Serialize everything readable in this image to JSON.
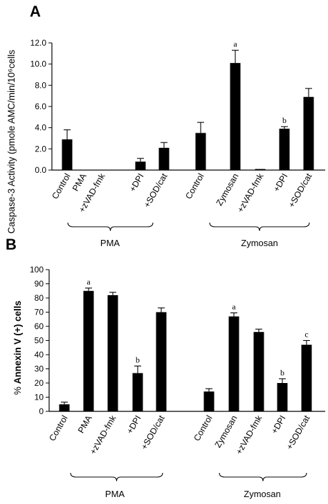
{
  "chart_data": [
    {
      "type": "bar",
      "panel": "A",
      "ylabel": "Caspase-3 Activity (pmole AMC/min/10⁶cells",
      "xlabel": "",
      "ylim": [
        0,
        12
      ],
      "yticks": [
        "0.0",
        "2.0",
        "4.0",
        "6.0",
        "8.0",
        "10.0",
        "12.0"
      ],
      "grid": false,
      "groups": [
        {
          "name": "PMA",
          "categories": [
            "Control",
            "PMA",
            "+zVAD-fmk",
            "+DPI",
            "+SOD/cat"
          ],
          "values": [
            2.9,
            0.0,
            0.0,
            0.8,
            2.1
          ],
          "errors": [
            0.9,
            0.0,
            0.0,
            0.3,
            0.5
          ],
          "annotations": [
            "",
            "",
            "",
            "",
            ""
          ]
        },
        {
          "name": "Zymosan",
          "categories": [
            "Control",
            "Zymosan",
            "+zVAD-fmk",
            "+DPI",
            "+SOD/cat"
          ],
          "values": [
            3.5,
            10.1,
            0.1,
            3.9,
            6.9
          ],
          "errors": [
            1.0,
            1.2,
            0.0,
            0.2,
            0.8
          ],
          "annotations": [
            "",
            "a",
            "",
            "b",
            ""
          ]
        }
      ]
    },
    {
      "type": "bar",
      "panel": "B",
      "ylabel_prefix": "% ",
      "ylabel_bold": "Annexin V (+) cells",
      "xlabel": "",
      "ylim": [
        0,
        100
      ],
      "yticks": [
        "0",
        "10",
        "20",
        "30",
        "40",
        "50",
        "60",
        "70",
        "80",
        "90",
        "100"
      ],
      "grid": false,
      "groups": [
        {
          "name": "PMA",
          "categories": [
            "Control",
            "PMA",
            "+zVAD-fmk",
            "+DPI",
            "+SOD/cat"
          ],
          "values": [
            5,
            85,
            82,
            27,
            70
          ],
          "errors": [
            1.5,
            2,
            2,
            5,
            3
          ],
          "annotations": [
            "",
            "a",
            "",
            "b",
            ""
          ]
        },
        {
          "name": "Zymosan",
          "categories": [
            "Control",
            "Zymosan",
            "+zVAD-fmk",
            "+DPI",
            "+SOD/cat"
          ],
          "values": [
            14,
            67,
            56,
            20,
            47
          ],
          "errors": [
            2,
            2.5,
            2,
            3,
            3
          ],
          "annotations": [
            "",
            "a",
            "",
            "b",
            "c"
          ]
        }
      ]
    }
  ]
}
